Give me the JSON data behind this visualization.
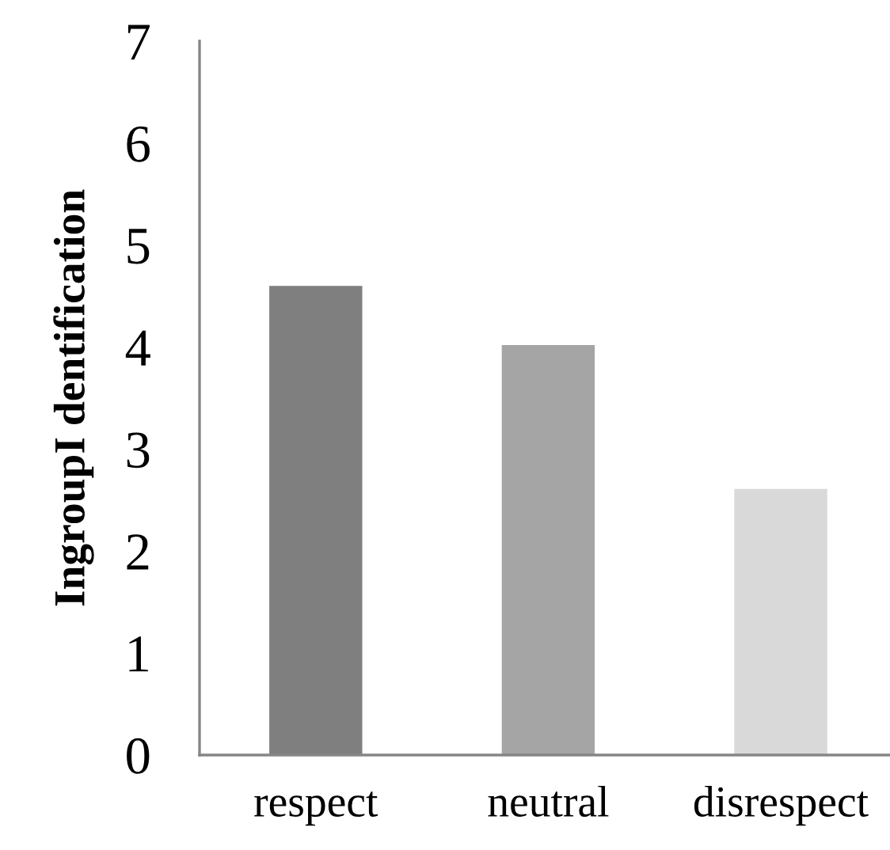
{
  "chart_data": {
    "type": "bar",
    "ylabel": "IngroupI dentification",
    "categories": [
      "respect",
      "neutral",
      "disrespect"
    ],
    "values": [
      4.6,
      4.02,
      2.61
    ],
    "colors": [
      "#7f7f7f",
      "#a5a5a5",
      "#d9d9d9"
    ],
    "ylim": [
      0,
      7
    ],
    "yticks": [
      0,
      1,
      2,
      3,
      4,
      5,
      6,
      7
    ],
    "grid": false
  }
}
